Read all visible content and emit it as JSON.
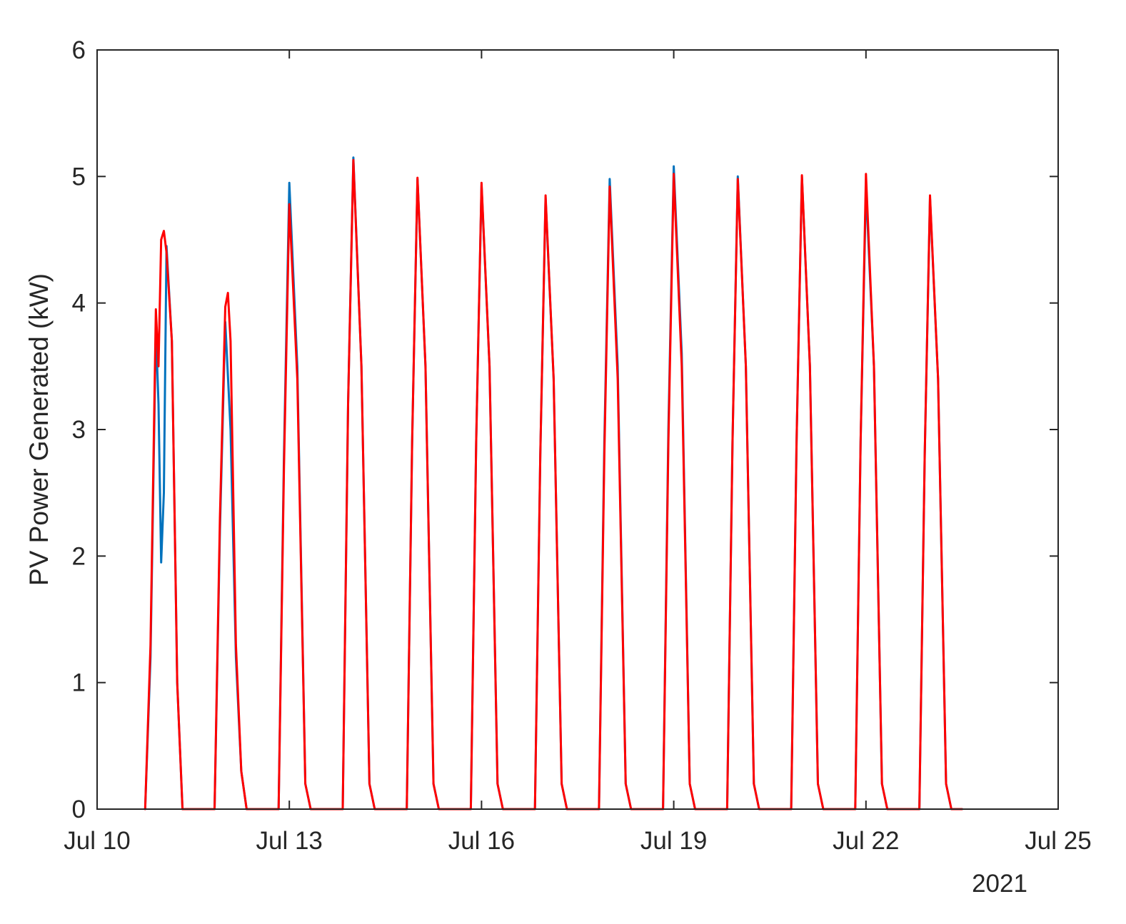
{
  "chart_data": {
    "type": "line",
    "title": "",
    "xlabel": "",
    "ylabel": "PV Power Generated (kW)",
    "x_secondary_label": "2021",
    "xlim": [
      "2021-07-10",
      "2021-07-25"
    ],
    "ylim": [
      0,
      6
    ],
    "xticks": [
      {
        "value": "2021-07-10",
        "label": "Jul 10"
      },
      {
        "value": "2021-07-13",
        "label": "Jul 13"
      },
      {
        "value": "2021-07-16",
        "label": "Jul 16"
      },
      {
        "value": "2021-07-19",
        "label": "Jul 19"
      },
      {
        "value": "2021-07-22",
        "label": "Jul 22"
      },
      {
        "value": "2021-07-25",
        "label": "Jul 25"
      }
    ],
    "yticks": [
      {
        "value": 0,
        "label": "0"
      },
      {
        "value": 1,
        "label": "1"
      },
      {
        "value": 2,
        "label": "2"
      },
      {
        "value": 3,
        "label": "3"
      },
      {
        "value": 4,
        "label": "4"
      },
      {
        "value": 5,
        "label": "5"
      },
      {
        "value": 6,
        "label": "6"
      }
    ],
    "grid": false,
    "legend": "none",
    "series": [
      {
        "color": "#0072BD",
        "x": [
          "2021-07-10 18:00",
          "2021-07-10 20:00",
          "2021-07-10 22:00",
          "2021-07-10 23:00",
          "2021-07-11 00:00",
          "2021-07-11 01:00",
          "2021-07-11 02:00",
          "2021-07-11 04:00",
          "2021-07-11 06:00",
          "2021-07-11 08:00",
          "2021-07-11 20:00",
          "2021-07-11 22:00",
          "2021-07-12 00:00",
          "2021-07-12 02:00",
          "2021-07-12 04:00",
          "2021-07-12 06:00",
          "2021-07-12 08:00",
          "2021-07-12 20:00",
          "2021-07-12 22:00",
          "2021-07-13 00:00",
          "2021-07-13 03:00",
          "2021-07-13 06:00",
          "2021-07-13 08:00",
          "2021-07-13 20:00",
          "2021-07-13 22:00",
          "2021-07-14 00:00",
          "2021-07-14 03:00",
          "2021-07-14 06:00",
          "2021-07-14 08:00",
          "2021-07-14 20:00",
          "2021-07-14 22:00",
          "2021-07-15 00:00",
          "2021-07-15 03:00",
          "2021-07-15 06:00",
          "2021-07-15 08:00",
          "2021-07-15 20:00",
          "2021-07-15 22:00",
          "2021-07-16 00:00",
          "2021-07-16 03:00",
          "2021-07-16 06:00",
          "2021-07-16 08:00",
          "2021-07-16 20:00",
          "2021-07-16 22:00",
          "2021-07-17 00:00",
          "2021-07-17 03:00",
          "2021-07-17 06:00",
          "2021-07-17 08:00",
          "2021-07-17 20:00",
          "2021-07-17 22:00",
          "2021-07-18 00:00",
          "2021-07-18 03:00",
          "2021-07-18 06:00",
          "2021-07-18 08:00",
          "2021-07-18 20:00",
          "2021-07-18 22:00",
          "2021-07-19 00:00",
          "2021-07-19 03:00",
          "2021-07-19 06:00",
          "2021-07-19 08:00",
          "2021-07-19 20:00",
          "2021-07-19 22:00",
          "2021-07-20 00:00",
          "2021-07-20 03:00",
          "2021-07-20 06:00",
          "2021-07-20 08:00",
          "2021-07-20 20:00",
          "2021-07-20 22:00",
          "2021-07-21 00:00",
          "2021-07-21 03:00",
          "2021-07-21 06:00",
          "2021-07-21 08:00",
          "2021-07-21 20:00",
          "2021-07-21 22:00",
          "2021-07-22 00:00",
          "2021-07-22 03:00",
          "2021-07-22 06:00",
          "2021-07-22 08:00",
          "2021-07-22 20:00",
          "2021-07-22 22:00",
          "2021-07-23 00:00",
          "2021-07-23 03:00",
          "2021-07-23 06:00",
          "2021-07-23 08:00",
          "2021-07-23 12:00"
        ],
        "y": [
          0,
          1.2,
          3.8,
          3.2,
          1.95,
          2.5,
          4.45,
          3.7,
          1.0,
          0,
          0,
          2.2,
          3.85,
          3.0,
          1.2,
          0.3,
          0,
          0,
          2.8,
          4.95,
          3.5,
          0.2,
          0,
          0,
          3.2,
          5.15,
          3.5,
          0.2,
          0,
          0,
          2.9,
          4.98,
          3.5,
          0.2,
          0,
          0,
          2.9,
          4.93,
          3.5,
          0.2,
          0,
          0,
          2.8,
          4.83,
          3.4,
          0.2,
          0,
          0,
          2.9,
          4.98,
          3.5,
          0.2,
          0,
          0,
          3.0,
          5.08,
          3.6,
          0.2,
          0,
          0,
          2.9,
          5.0,
          3.5,
          0.2,
          0,
          0,
          2.9,
          5.0,
          3.5,
          0.2,
          0,
          0,
          2.9,
          4.92,
          3.5,
          0.2,
          0,
          0,
          2.8,
          4.83,
          3.4,
          0.2,
          0,
          0
        ]
      },
      {
        "color": "#FF0000",
        "x": [
          "2021-07-10 18:00",
          "2021-07-10 20:00",
          "2021-07-10 22:00",
          "2021-07-10 23:00",
          "2021-07-11 00:00",
          "2021-07-11 01:00",
          "2021-07-11 02:00",
          "2021-07-11 04:00",
          "2021-07-11 06:00",
          "2021-07-11 08:00",
          "2021-07-11 20:00",
          "2021-07-11 22:00",
          "2021-07-12 00:00",
          "2021-07-12 01:00",
          "2021-07-12 02:00",
          "2021-07-12 04:00",
          "2021-07-12 06:00",
          "2021-07-12 08:00",
          "2021-07-12 20:00",
          "2021-07-12 22:00",
          "2021-07-13 00:00",
          "2021-07-13 03:00",
          "2021-07-13 06:00",
          "2021-07-13 08:00",
          "2021-07-13 20:00",
          "2021-07-13 22:00",
          "2021-07-14 00:00",
          "2021-07-14 03:00",
          "2021-07-14 06:00",
          "2021-07-14 08:00",
          "2021-07-14 20:00",
          "2021-07-14 22:00",
          "2021-07-15 00:00",
          "2021-07-15 03:00",
          "2021-07-15 06:00",
          "2021-07-15 08:00",
          "2021-07-15 20:00",
          "2021-07-15 22:00",
          "2021-07-16 00:00",
          "2021-07-16 03:00",
          "2021-07-16 06:00",
          "2021-07-16 08:00",
          "2021-07-16 20:00",
          "2021-07-16 22:00",
          "2021-07-17 00:00",
          "2021-07-17 03:00",
          "2021-07-17 06:00",
          "2021-07-17 08:00",
          "2021-07-17 20:00",
          "2021-07-17 22:00",
          "2021-07-18 00:00",
          "2021-07-18 03:00",
          "2021-07-18 06:00",
          "2021-07-18 08:00",
          "2021-07-18 20:00",
          "2021-07-18 22:00",
          "2021-07-19 00:00",
          "2021-07-19 03:00",
          "2021-07-19 06:00",
          "2021-07-19 08:00",
          "2021-07-19 20:00",
          "2021-07-19 22:00",
          "2021-07-20 00:00",
          "2021-07-20 03:00",
          "2021-07-20 06:00",
          "2021-07-20 08:00",
          "2021-07-20 20:00",
          "2021-07-20 22:00",
          "2021-07-21 00:00",
          "2021-07-21 03:00",
          "2021-07-21 06:00",
          "2021-07-21 08:00",
          "2021-07-21 20:00",
          "2021-07-21 22:00",
          "2021-07-22 00:00",
          "2021-07-22 03:00",
          "2021-07-22 06:00",
          "2021-07-22 08:00",
          "2021-07-22 20:00",
          "2021-07-22 22:00",
          "2021-07-23 00:00",
          "2021-07-23 03:00",
          "2021-07-23 06:00",
          "2021-07-23 08:00",
          "2021-07-23 12:00"
        ],
        "y": [
          0,
          1.3,
          3.95,
          3.5,
          4.5,
          4.57,
          4.4,
          3.7,
          1.0,
          0,
          0,
          2.3,
          3.97,
          4.08,
          3.7,
          1.3,
          0.3,
          0,
          0,
          2.7,
          4.78,
          3.4,
          0.2,
          0,
          0,
          3.2,
          5.13,
          3.5,
          0.2,
          0,
          0,
          2.9,
          4.99,
          3.5,
          0.2,
          0,
          0,
          2.9,
          4.95,
          3.5,
          0.2,
          0,
          0,
          2.8,
          4.85,
          3.4,
          0.2,
          0,
          0,
          2.8,
          4.92,
          3.4,
          0.2,
          0,
          0,
          2.9,
          5.02,
          3.5,
          0.2,
          0,
          0,
          2.9,
          4.98,
          3.5,
          0.2,
          0,
          0,
          2.9,
          5.01,
          3.5,
          0.2,
          0,
          0,
          2.9,
          5.02,
          3.5,
          0.2,
          0,
          0,
          2.8,
          4.85,
          3.4,
          0.2,
          0,
          0
        ]
      }
    ]
  }
}
